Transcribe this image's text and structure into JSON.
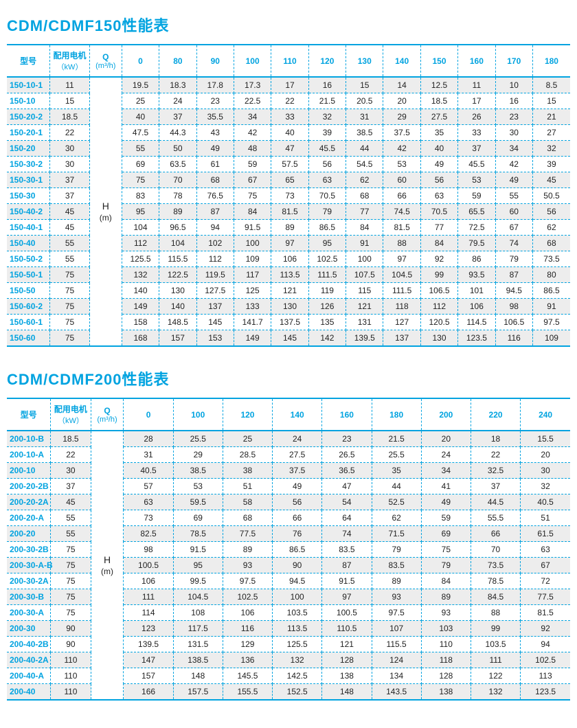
{
  "table150": {
    "title": "CDM/CDMF150性能表",
    "headers": {
      "model": "型号",
      "motor": "配用电机",
      "motor_sub": "（kW）",
      "q": "Q",
      "q_sub": "(m³/h)",
      "h_label": "H",
      "h_sub": "(m)",
      "flows": [
        "0",
        "80",
        "90",
        "100",
        "110",
        "120",
        "130",
        "140",
        "150",
        "160",
        "170",
        "180"
      ]
    },
    "rows": [
      {
        "model": "150-10-1",
        "kw": "11",
        "v": [
          "19.5",
          "18.3",
          "17.8",
          "17.3",
          "17",
          "16",
          "15",
          "14",
          "12.5",
          "11",
          "10",
          "8.5"
        ]
      },
      {
        "model": "150-10",
        "kw": "15",
        "v": [
          "25",
          "24",
          "23",
          "22.5",
          "22",
          "21.5",
          "20.5",
          "20",
          "18.5",
          "17",
          "16",
          "15"
        ]
      },
      {
        "model": "150-20-2",
        "kw": "18.5",
        "v": [
          "40",
          "37",
          "35.5",
          "34",
          "33",
          "32",
          "31",
          "29",
          "27.5",
          "26",
          "23",
          "21"
        ]
      },
      {
        "model": "150-20-1",
        "kw": "22",
        "v": [
          "47.5",
          "44.3",
          "43",
          "42",
          "40",
          "39",
          "38.5",
          "37.5",
          "35",
          "33",
          "30",
          "27"
        ]
      },
      {
        "model": "150-20",
        "kw": "30",
        "v": [
          "55",
          "50",
          "49",
          "48",
          "47",
          "45.5",
          "44",
          "42",
          "40",
          "37",
          "34",
          "32"
        ]
      },
      {
        "model": "150-30-2",
        "kw": "30",
        "v": [
          "69",
          "63.5",
          "61",
          "59",
          "57.5",
          "56",
          "54.5",
          "53",
          "49",
          "45.5",
          "42",
          "39"
        ]
      },
      {
        "model": "150-30-1",
        "kw": "37",
        "v": [
          "75",
          "70",
          "68",
          "67",
          "65",
          "63",
          "62",
          "60",
          "56",
          "53",
          "49",
          "45"
        ]
      },
      {
        "model": "150-30",
        "kw": "37",
        "v": [
          "83",
          "78",
          "76.5",
          "75",
          "73",
          "70.5",
          "68",
          "66",
          "63",
          "59",
          "55",
          "50.5"
        ]
      },
      {
        "model": "150-40-2",
        "kw": "45",
        "v": [
          "95",
          "89",
          "87",
          "84",
          "81.5",
          "79",
          "77",
          "74.5",
          "70.5",
          "65.5",
          "60",
          "56"
        ]
      },
      {
        "model": "150-40-1",
        "kw": "45",
        "v": [
          "104",
          "96.5",
          "94",
          "91.5",
          "89",
          "86.5",
          "84",
          "81.5",
          "77",
          "72.5",
          "67",
          "62"
        ]
      },
      {
        "model": "150-40",
        "kw": "55",
        "v": [
          "112",
          "104",
          "102",
          "100",
          "97",
          "95",
          "91",
          "88",
          "84",
          "79.5",
          "74",
          "68"
        ]
      },
      {
        "model": "150-50-2",
        "kw": "55",
        "v": [
          "125.5",
          "115.5",
          "112",
          "109",
          "106",
          "102.5",
          "100",
          "97",
          "92",
          "86",
          "79",
          "73.5"
        ]
      },
      {
        "model": "150-50-1",
        "kw": "75",
        "v": [
          "132",
          "122.5",
          "119.5",
          "117",
          "113.5",
          "111.5",
          "107.5",
          "104.5",
          "99",
          "93.5",
          "87",
          "80"
        ]
      },
      {
        "model": "150-50",
        "kw": "75",
        "v": [
          "140",
          "130",
          "127.5",
          "125",
          "121",
          "119",
          "115",
          "111.5",
          "106.5",
          "101",
          "94.5",
          "86.5"
        ]
      },
      {
        "model": "150-60-2",
        "kw": "75",
        "v": [
          "149",
          "140",
          "137",
          "133",
          "130",
          "126",
          "121",
          "118",
          "112",
          "106",
          "98",
          "91"
        ]
      },
      {
        "model": "150-60-1",
        "kw": "75",
        "v": [
          "158",
          "148.5",
          "145",
          "141.7",
          "137.5",
          "135",
          "131",
          "127",
          "120.5",
          "114.5",
          "106.5",
          "97.5"
        ]
      },
      {
        "model": "150-60",
        "kw": "75",
        "v": [
          "168",
          "157",
          "153",
          "149",
          "145",
          "142",
          "139.5",
          "137",
          "130",
          "123.5",
          "116",
          "109"
        ]
      }
    ]
  },
  "table200": {
    "title": "CDM/CDMF200性能表",
    "headers": {
      "model": "型号",
      "motor": "配用电机",
      "motor_sub": "（kW）",
      "q": "Q",
      "q_sub": "(m³/h)",
      "h_label": "H",
      "h_sub": "(m)",
      "flows": [
        "0",
        "100",
        "120",
        "140",
        "160",
        "180",
        "200",
        "220",
        "240"
      ]
    },
    "rows": [
      {
        "model": "200-10-B",
        "kw": "18.5",
        "v": [
          "28",
          "25.5",
          "25",
          "24",
          "23",
          "21.5",
          "20",
          "18",
          "15.5"
        ]
      },
      {
        "model": "200-10-A",
        "kw": "22",
        "v": [
          "31",
          "29",
          "28.5",
          "27.5",
          "26.5",
          "25.5",
          "24",
          "22",
          "20"
        ]
      },
      {
        "model": "200-10",
        "kw": "30",
        "v": [
          "40.5",
          "38.5",
          "38",
          "37.5",
          "36.5",
          "35",
          "34",
          "32.5",
          "30"
        ]
      },
      {
        "model": "200-20-2B",
        "kw": "37",
        "v": [
          "57",
          "53",
          "51",
          "49",
          "47",
          "44",
          "41",
          "37",
          "32"
        ]
      },
      {
        "model": "200-20-2A",
        "kw": "45",
        "v": [
          "63",
          "59.5",
          "58",
          "56",
          "54",
          "52.5",
          "49",
          "44.5",
          "40.5"
        ]
      },
      {
        "model": "200-20-A",
        "kw": "55",
        "v": [
          "73",
          "69",
          "68",
          "66",
          "64",
          "62",
          "59",
          "55.5",
          "51"
        ]
      },
      {
        "model": "200-20",
        "kw": "55",
        "v": [
          "82.5",
          "78.5",
          "77.5",
          "76",
          "74",
          "71.5",
          "69",
          "66",
          "61.5"
        ]
      },
      {
        "model": "200-30-2B",
        "kw": "75",
        "v": [
          "98",
          "91.5",
          "89",
          "86.5",
          "83.5",
          "79",
          "75",
          "70",
          "63"
        ]
      },
      {
        "model": "200-30-A-B",
        "kw": "75",
        "v": [
          "100.5",
          "95",
          "93",
          "90",
          "87",
          "83.5",
          "79",
          "73.5",
          "67"
        ]
      },
      {
        "model": "200-30-2A",
        "kw": "75",
        "v": [
          "106",
          "99.5",
          "97.5",
          "94.5",
          "91.5",
          "89",
          "84",
          "78.5",
          "72"
        ]
      },
      {
        "model": "200-30-B",
        "kw": "75",
        "v": [
          "111",
          "104.5",
          "102.5",
          "100",
          "97",
          "93",
          "89",
          "84.5",
          "77.5"
        ]
      },
      {
        "model": "200-30-A",
        "kw": "75",
        "v": [
          "114",
          "108",
          "106",
          "103.5",
          "100.5",
          "97.5",
          "93",
          "88",
          "81.5"
        ]
      },
      {
        "model": "200-30",
        "kw": "90",
        "v": [
          "123",
          "117.5",
          "116",
          "113.5",
          "110.5",
          "107",
          "103",
          "99",
          "92"
        ]
      },
      {
        "model": "200-40-2B",
        "kw": "90",
        "v": [
          "139.5",
          "131.5",
          "129",
          "125.5",
          "121",
          "115.5",
          "110",
          "103.5",
          "94"
        ]
      },
      {
        "model": "200-40-2A",
        "kw": "110",
        "v": [
          "147",
          "138.5",
          "136",
          "132",
          "128",
          "124",
          "118",
          "111",
          "102.5"
        ]
      },
      {
        "model": "200-40-A",
        "kw": "110",
        "v": [
          "157",
          "148",
          "145.5",
          "142.5",
          "138",
          "134",
          "128",
          "122",
          "113"
        ]
      },
      {
        "model": "200-40",
        "kw": "110",
        "v": [
          "166",
          "157.5",
          "155.5",
          "152.5",
          "148",
          "143.5",
          "138",
          "132",
          "123.5"
        ]
      }
    ]
  }
}
